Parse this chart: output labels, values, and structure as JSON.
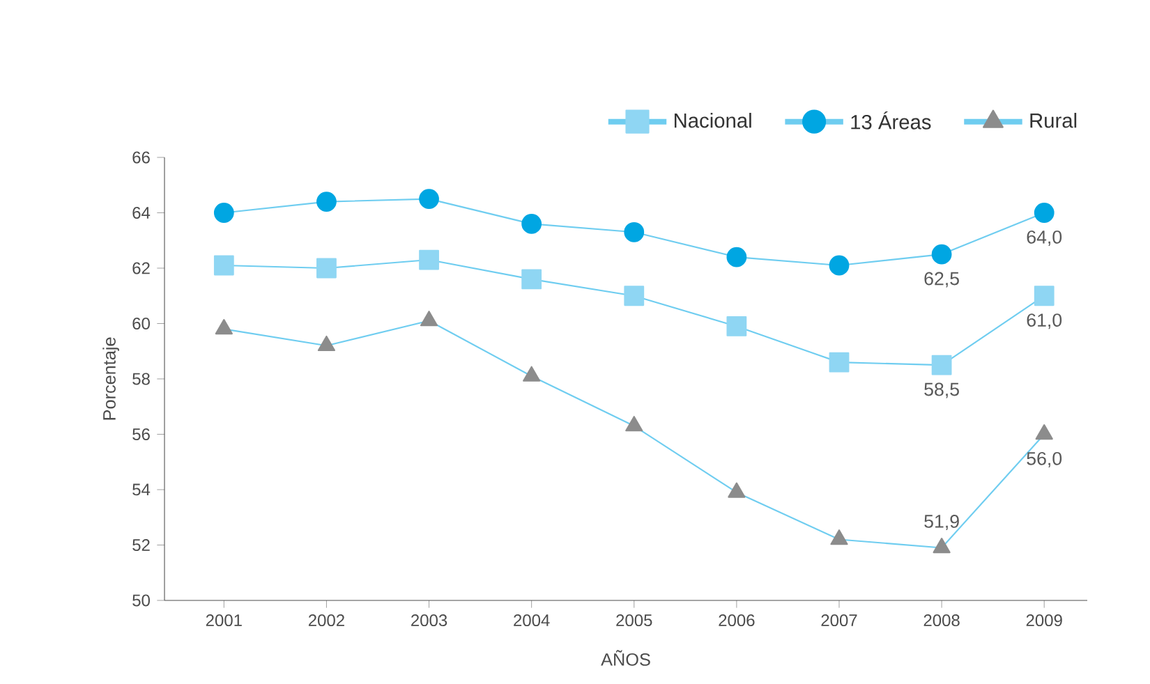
{
  "chart_data": {
    "type": "line",
    "xlabel": "AÑOS",
    "ylabel": "Porcentaje",
    "categories": [
      "2001",
      "2002",
      "2003",
      "2004",
      "2005",
      "2006",
      "2007",
      "2008",
      "2009"
    ],
    "series": [
      {
        "name": "Nacional",
        "color": "#8fd6f3",
        "marker": "square",
        "values": [
          62.1,
          62.0,
          62.3,
          61.6,
          61.0,
          59.9,
          58.6,
          58.5,
          61.0
        ],
        "value_labels": [
          null,
          null,
          null,
          null,
          null,
          null,
          null,
          "58,5",
          "61,0"
        ]
      },
      {
        "name": "13 Áreas",
        "color": "#00a6e2",
        "marker": "circle",
        "values": [
          64.0,
          64.4,
          64.5,
          63.6,
          63.3,
          62.4,
          62.1,
          62.5,
          64.0
        ],
        "value_labels": [
          null,
          null,
          null,
          null,
          null,
          null,
          null,
          "62,5",
          "64,0"
        ]
      },
      {
        "name": "Rural",
        "color": "#8c8c8c",
        "marker": "triangle",
        "values": [
          59.8,
          59.2,
          60.1,
          58.1,
          56.3,
          53.9,
          52.2,
          51.9,
          56.0
        ],
        "value_labels": [
          null,
          null,
          null,
          null,
          null,
          null,
          null,
          "51,9",
          "56,0"
        ]
      }
    ],
    "ylim": [
      50,
      66
    ],
    "yticks": [
      50,
      52,
      54,
      56,
      58,
      60,
      62,
      64,
      66
    ],
    "grid": false,
    "legend": "top right"
  }
}
